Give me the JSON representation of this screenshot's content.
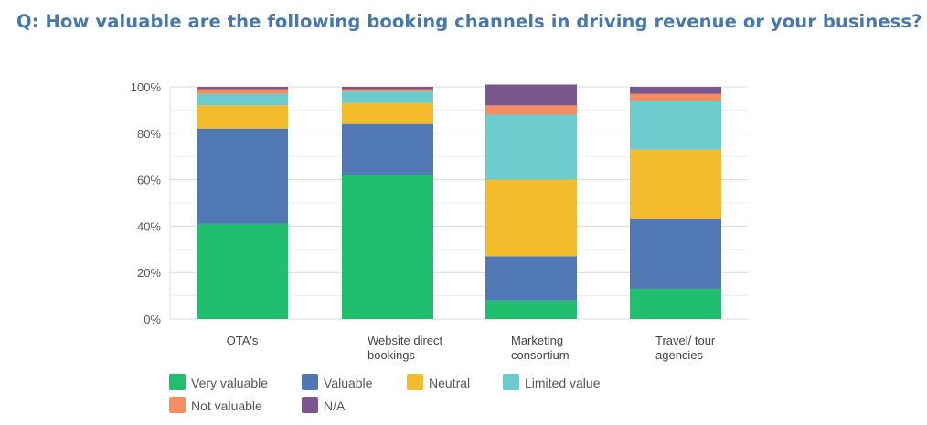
{
  "question": "Q: How valuable are the following booking channels in driving revenue or your business?",
  "chart_data": {
    "type": "bar",
    "stacked": true,
    "categories": [
      [
        "OTA's"
      ],
      [
        "Website direct",
        "bookings"
      ],
      [
        "Marketing",
        "consortium"
      ],
      [
        "Travel/ tour",
        "agencies"
      ]
    ],
    "yticks": [
      "0%",
      "20%",
      "40%",
      "60%",
      "80%",
      "100%"
    ],
    "ylim": [
      0,
      100
    ],
    "grid": true,
    "legend_position": "bottom",
    "series": [
      {
        "name": "Very valuable",
        "color": "#1fbf6e",
        "values": [
          41,
          62,
          8,
          13
        ]
      },
      {
        "name": "Valuable",
        "color": "#5078b4",
        "values": [
          41,
          22,
          19,
          30
        ]
      },
      {
        "name": "Neutral",
        "color": "#f4bb2a",
        "values": [
          10,
          9,
          33,
          30
        ]
      },
      {
        "name": "Limited value",
        "color": "#6ccbcc",
        "values": [
          5,
          5,
          28,
          21
        ]
      },
      {
        "name": "Not valuable",
        "color": "#f68c61",
        "values": [
          2,
          1,
          4,
          3
        ]
      },
      {
        "name": "N/A",
        "color": "#7b5790",
        "values": [
          1,
          1,
          9,
          3
        ]
      }
    ]
  }
}
